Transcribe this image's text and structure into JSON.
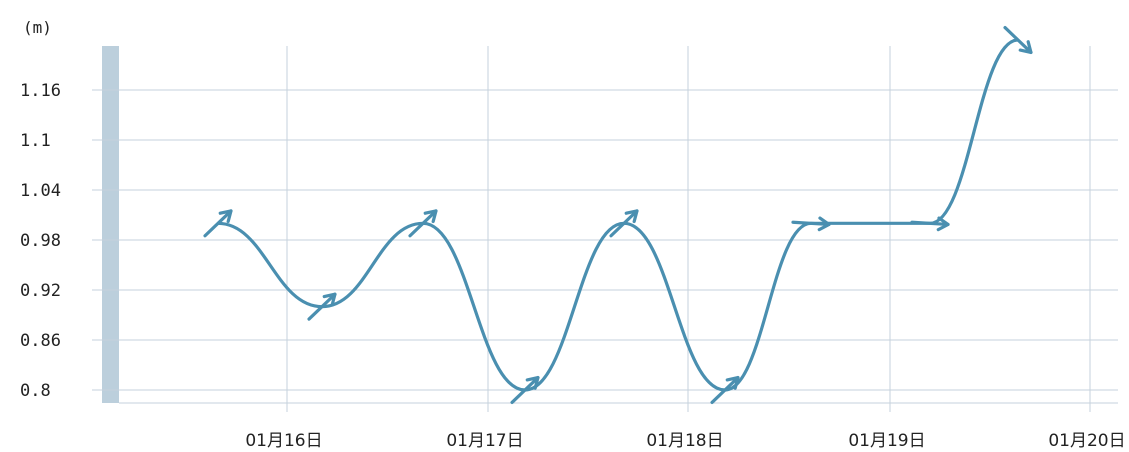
{
  "chart_data": {
    "type": "line",
    "unit_label": "(m)",
    "y_ticks": [
      "0.8",
      "0.86",
      "0.92",
      "0.98",
      "1.04",
      "1.1",
      "1.16"
    ],
    "y_tick_values": [
      0.8,
      0.86,
      0.92,
      0.98,
      1.04,
      1.1,
      1.16
    ],
    "x_tick_labels": [
      "01月16日",
      "01月17日",
      "01月18日",
      "01月19日",
      "01月20日"
    ],
    "ylim": [
      0.8,
      1.22
    ],
    "grid": true,
    "series": [
      {
        "values": [
          1.0,
          0.9,
          1.0,
          0.8,
          1.0,
          0.8,
          1.0,
          1.0,
          1.22
        ],
        "directions": [
          "NE",
          "NE",
          "NE",
          "NE",
          "NE",
          "NE",
          "E",
          "E",
          "SE"
        ]
      }
    ],
    "colors": {
      "line": "#4a8fb0",
      "grid": "#c6d2dc",
      "side_bar": "#bccfdc"
    }
  }
}
